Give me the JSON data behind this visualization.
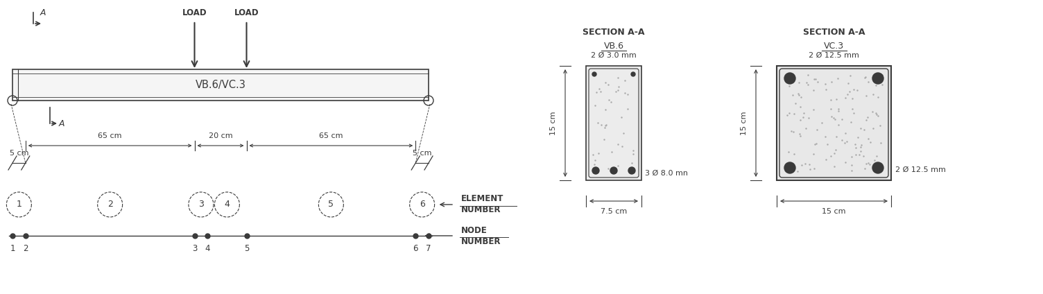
{
  "fig_width": 15.04,
  "fig_height": 4.24,
  "bg_color": "#ffffff",
  "line_color": "#3a3a3a",
  "beam_label": "VB.6/VC.3",
  "load_label": "LOAD",
  "section_title1": "SECTION A-A",
  "section_sub1": "VB.6",
  "section_title2": "SECTION A-A",
  "section_sub2": "VC.3",
  "dim_65": "65 cm",
  "dim_20": "20 cm",
  "dim_65b": "65 cm",
  "dim_5a": "5 cm",
  "dim_5b": "5 cm",
  "element_label": "ELEMENT\nNUMBER",
  "node_label": "NODE\nNUMBER",
  "rebar_top1": "2 Ø 3.0 mm",
  "rebar_bot1": "3 Ø 8.0 mn",
  "rebar_top2": "2 Ø 12.5 mm",
  "rebar_bot2": "2 Ø 12.5 mm",
  "height_label1": "15 cm",
  "width_label1": "7.5 cm",
  "height_label2": "15 cm",
  "width_label2": "15 cm"
}
